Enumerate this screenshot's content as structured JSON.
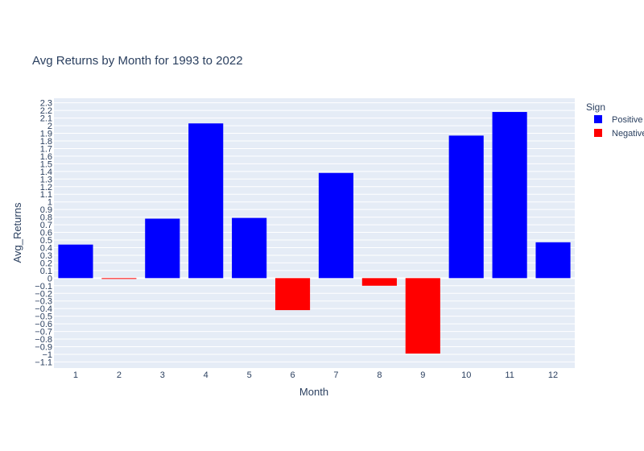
{
  "chart_data": {
    "type": "bar",
    "title": "Avg Returns by Month for 1993 to 2022",
    "xlabel": "Month",
    "ylabel": "Avg_Returns",
    "categories": [
      "1",
      "2",
      "3",
      "4",
      "5",
      "6",
      "7",
      "8",
      "9",
      "10",
      "11",
      "12"
    ],
    "values": [
      0.44,
      -0.01,
      0.78,
      2.03,
      0.79,
      -0.42,
      1.38,
      -0.1,
      -0.99,
      1.87,
      2.18,
      0.47
    ],
    "ylim": [
      -1.18,
      2.36
    ],
    "yticks": [
      "2.3",
      "2.2",
      "2.1",
      "2",
      "1.9",
      "1.8",
      "1.7",
      "1.6",
      "1.5",
      "1.4",
      "1.3",
      "1.2",
      "1.1",
      "1",
      "0.9",
      "0.8",
      "0.7",
      "0.6",
      "0.5",
      "0.4",
      "0.3",
      "0.2",
      "0.1",
      "0",
      "−0.1",
      "−0.2",
      "−0.3",
      "−0.4",
      "−0.5",
      "−0.6",
      "−0.7",
      "−0.8",
      "−0.9",
      "−1",
      "−1.1"
    ],
    "grid": true,
    "legend": {
      "title": "Sign",
      "placement": "top-right",
      "items": [
        {
          "label": "Positive",
          "color": "#0000ff"
        },
        {
          "label": "Negative",
          "color": "#ff0000"
        }
      ]
    },
    "colors": {
      "positive": "#0000ff",
      "negative": "#ff0000",
      "plot_bg": "#e5ecf6",
      "grid": "#ffffff"
    }
  }
}
